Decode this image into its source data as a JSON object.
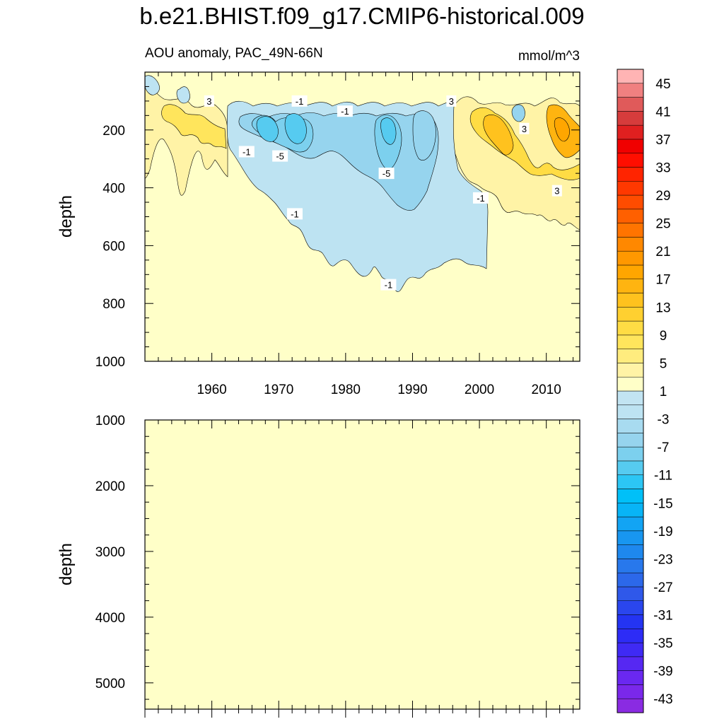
{
  "chart_data": {
    "type": "heatmap",
    "title": "b.e21.BHIST.f09_g17.CMIP6-historical.009",
    "left_subtitle": "AOU anomaly, PAC_49N-66N",
    "right_subtitle": "mmol/m^3",
    "x_range": [
      1950,
      2015
    ],
    "x_ticks": [
      1960,
      1970,
      1980,
      1990,
      2000,
      2010
    ],
    "panels": [
      {
        "name": "upper-ocean",
        "ylabel": "depth",
        "ylim": [
          0,
          1000
        ],
        "y_ticks": [
          200,
          400,
          600,
          800,
          1000
        ],
        "contour_labels": [
          {
            "text": "3",
            "x": 1959.6,
            "y": 100
          },
          {
            "text": "-1",
            "x": 1973.1,
            "y": 100
          },
          {
            "text": "-1",
            "x": 1979.9,
            "y": 135
          },
          {
            "text": "-1",
            "x": 1965.2,
            "y": 275
          },
          {
            "text": "-5",
            "x": 1970.2,
            "y": 290
          },
          {
            "text": "-5",
            "x": 1986.1,
            "y": 350
          },
          {
            "text": "-1",
            "x": 1972.4,
            "y": 490
          },
          {
            "text": "-1",
            "x": 1986.4,
            "y": 735
          },
          {
            "text": "3",
            "x": 1995.8,
            "y": 100
          },
          {
            "text": "3",
            "x": 2006.7,
            "y": 195
          },
          {
            "text": "-1",
            "x": 2000.2,
            "y": 435
          },
          {
            "text": "3",
            "x": 2011.6,
            "y": 410
          }
        ]
      },
      {
        "name": "deep-ocean",
        "ylabel": "depth",
        "ylim": [
          1000,
          5400
        ],
        "y_ticks": [
          1000,
          2000,
          3000,
          4000,
          5000
        ],
        "contour_labels": []
      }
    ],
    "colorbar": {
      "levels": [
        -45,
        -43,
        -41,
        -39,
        -37,
        -35,
        -33,
        -31,
        -29,
        -27,
        -25,
        -23,
        -21,
        -19,
        -17,
        -15,
        -13,
        -11,
        -9,
        -7,
        -5,
        -3,
        -1,
        1,
        3,
        5,
        7,
        9,
        11,
        13,
        15,
        17,
        19,
        21,
        23,
        25,
        27,
        29,
        31,
        33,
        35,
        37,
        39,
        41,
        43,
        45
      ],
      "label_values": [
        -43,
        -39,
        -35,
        -31,
        -27,
        -23,
        -19,
        -15,
        -11,
        -7,
        -3,
        1,
        5,
        9,
        13,
        17,
        21,
        25,
        29,
        33,
        37,
        41,
        45
      ],
      "colors": [
        "#8a2be2",
        "#7a28ea",
        "#6a28f0",
        "#5628f2",
        "#3f2af4",
        "#2d2cf6",
        "#2434f2",
        "#2a46ee",
        "#2f58ea",
        "#2c68ea",
        "#2878ec",
        "#1e88ee",
        "#1896f0",
        "#12a4f4",
        "#08b4f6",
        "#00c0f8",
        "#2cc6f4",
        "#56cbf0",
        "#7cd0ee",
        "#96d4ee",
        "#a8dbf0",
        "#bde3f2",
        "#c2e4f2",
        "#ffffc8",
        "#fff3a6",
        "#ffec7e",
        "#ffe55c",
        "#ffdc44",
        "#ffd030",
        "#ffc21e",
        "#ffb410",
        "#ffa600",
        "#ff9800",
        "#ff8800",
        "#ff7400",
        "#ff6000",
        "#ff4c00",
        "#ff3800",
        "#ff2400",
        "#ff0e00",
        "#f00000",
        "#e02020",
        "#d63c3c",
        "#e05a5a",
        "#f08080",
        "#ffb4b4"
      ]
    }
  }
}
